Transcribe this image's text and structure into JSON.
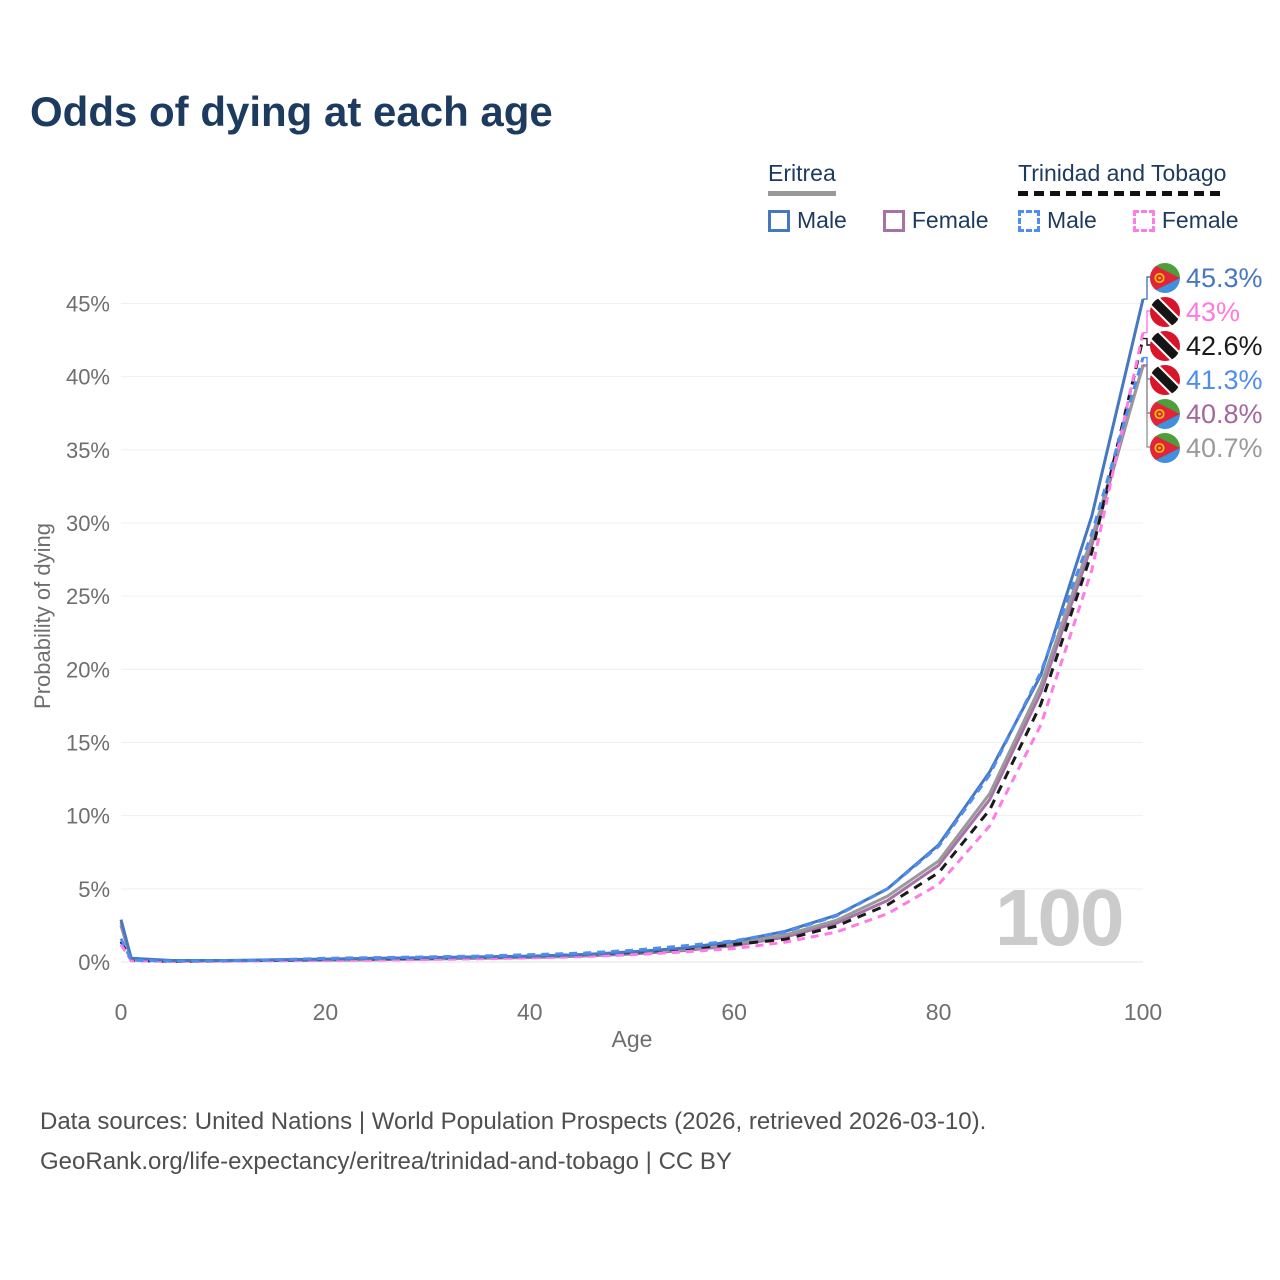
{
  "title": "Odds of dying at each age",
  "watermark": "100",
  "legend": {
    "groups": [
      {
        "country": "Eritrea",
        "underline_style": "solid",
        "underline_color": "#999999",
        "items": [
          {
            "label": "Male",
            "color": "#4678c0",
            "style": "solid"
          },
          {
            "label": "Female",
            "color": "#a672a8",
            "style": "solid"
          }
        ]
      },
      {
        "country": "Trinidad and Tobago",
        "underline_style": "dashed",
        "underline_color": "#111111",
        "items": [
          {
            "label": "Male",
            "color": "#4f8df2",
            "style": "dashed"
          },
          {
            "label": "Female",
            "color": "#ff7ce6",
            "style": "dashed"
          }
        ]
      }
    ]
  },
  "chart_data": {
    "type": "line",
    "title": "Odds of dying at each age",
    "xlabel": "Age",
    "ylabel": "Probability of dying",
    "xlim": [
      0,
      100
    ],
    "ylim": [
      0,
      47
    ],
    "xticks": [
      0,
      20,
      40,
      60,
      80,
      100
    ],
    "yticks": [
      0,
      5,
      10,
      15,
      20,
      25,
      30,
      35,
      40,
      45
    ],
    "grid": true,
    "legend_position": "top-right",
    "ages": [
      0,
      1,
      5,
      10,
      15,
      20,
      25,
      30,
      35,
      40,
      45,
      50,
      55,
      60,
      65,
      70,
      75,
      80,
      85,
      90,
      95,
      100
    ],
    "series": [
      {
        "id": "eritrea-male",
        "country": "Eritrea",
        "sex": "Male",
        "color": "#4678c0",
        "dash": "solid",
        "end_label": "45.3%",
        "end_value": 45.3,
        "values": [
          2.9,
          0.25,
          0.1,
          0.1,
          0.15,
          0.2,
          0.25,
          0.3,
          0.35,
          0.4,
          0.5,
          0.7,
          0.95,
          1.4,
          2.1,
          3.2,
          5.0,
          8.0,
          13.0,
          19.6,
          30.5,
          45.3
        ]
      },
      {
        "id": "eritrea-female",
        "country": "Eritrea",
        "sex": "Female",
        "color": "#a672a8",
        "dash": "solid",
        "end_label": "40.8%",
        "end_value": 40.8,
        "values": [
          2.5,
          0.2,
          0.08,
          0.08,
          0.1,
          0.13,
          0.16,
          0.2,
          0.25,
          0.3,
          0.4,
          0.55,
          0.78,
          1.12,
          1.7,
          2.65,
          4.2,
          6.6,
          11.1,
          18.4,
          28.5,
          40.8
        ]
      },
      {
        "id": "eritrea-both",
        "country": "Eritrea",
        "sex": "Both",
        "color": "#9a9a9a",
        "dash": "solid",
        "end_label": "40.7%",
        "end_value": 40.7,
        "values": [
          2.7,
          0.22,
          0.09,
          0.09,
          0.13,
          0.17,
          0.2,
          0.25,
          0.3,
          0.35,
          0.45,
          0.62,
          0.86,
          1.25,
          1.85,
          2.85,
          4.5,
          6.9,
          11.5,
          18.9,
          29.0,
          40.7
        ]
      },
      {
        "id": "tt-male",
        "country": "Trinidad and Tobago",
        "sex": "Male",
        "color": "#4f8df2",
        "dash": "dashed",
        "end_label": "41.3%",
        "end_value": 41.3,
        "values": [
          1.6,
          0.12,
          0.06,
          0.08,
          0.15,
          0.25,
          0.3,
          0.35,
          0.4,
          0.5,
          0.6,
          0.8,
          1.1,
          1.45,
          2.05,
          3.15,
          5.0,
          7.9,
          12.8,
          19.8,
          29.3,
          41.3
        ]
      },
      {
        "id": "tt-female",
        "country": "Trinidad and Tobago",
        "sex": "Female",
        "color": "#ff7ce6",
        "dash": "dashed",
        "end_label": "43%",
        "end_value": 43.0,
        "values": [
          1.2,
          0.09,
          0.04,
          0.05,
          0.08,
          0.1,
          0.13,
          0.17,
          0.22,
          0.28,
          0.36,
          0.5,
          0.68,
          0.92,
          1.35,
          2.05,
          3.3,
          5.3,
          9.3,
          16.2,
          26.8,
          43.0
        ]
      },
      {
        "id": "tt-both",
        "country": "Trinidad and Tobago",
        "sex": "Both",
        "color": "#1a1a1a",
        "dash": "dashed",
        "end_label": "42.6%",
        "end_value": 42.6,
        "values": [
          1.4,
          0.1,
          0.05,
          0.07,
          0.12,
          0.18,
          0.22,
          0.27,
          0.32,
          0.4,
          0.5,
          0.65,
          0.9,
          1.2,
          1.55,
          2.45,
          3.9,
          6.1,
          10.4,
          17.6,
          28.0,
          42.6
        ]
      }
    ]
  },
  "right_labels": [
    {
      "series": "eritrea-male",
      "text": "45.3%",
      "flag": "eritrea",
      "color": "#4678c0"
    },
    {
      "series": "tt-female",
      "text": "43%",
      "flag": "trinidad-and-tobago",
      "color": "#ff79e1"
    },
    {
      "series": "tt-both",
      "text": "42.6%",
      "flag": "trinidad-and-tobago",
      "color": "#1a1a1a"
    },
    {
      "series": "tt-male",
      "text": "41.3%",
      "flag": "trinidad-and-tobago",
      "color": "#4f8df2"
    },
    {
      "series": "eritrea-female",
      "text": "40.8%",
      "flag": "eritrea",
      "color": "#a4669f"
    },
    {
      "series": "eritrea-both",
      "text": "40.7%",
      "flag": "eritrea",
      "color": "#9a9a9a"
    }
  ],
  "footer": {
    "line1": "Data sources: United Nations | World Population Prospects (2026, retrieved 2026-03-10).",
    "line2": "GeoRank.org/life-expectancy/eritrea/trinidad-and-tobago | CC BY"
  }
}
